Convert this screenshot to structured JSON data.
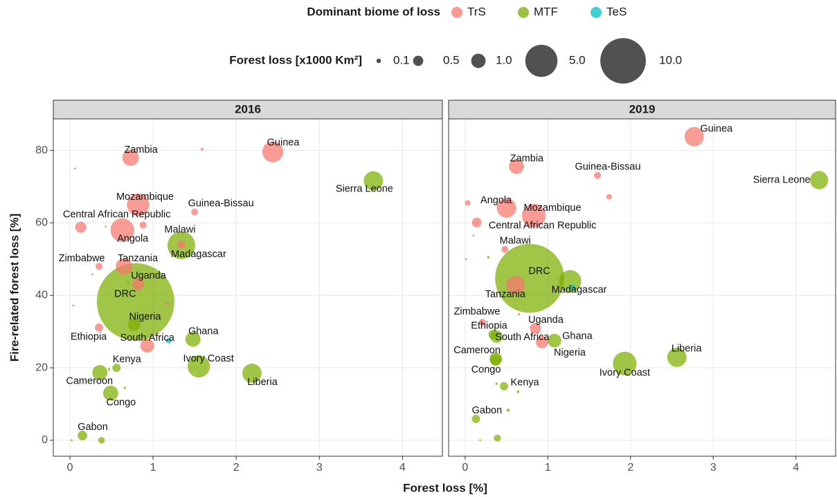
{
  "chart_data": {
    "type": "scatter",
    "x_label": "Forest loss [%]",
    "y_label": "Fire-related forest loss [%]",
    "xlim": [
      -0.2,
      4.48
    ],
    "ylim": [
      -4.4,
      88.7
    ],
    "xticks": [
      0,
      1,
      2,
      3,
      4
    ],
    "yticks": [
      0,
      20,
      40,
      60,
      80
    ],
    "grid": true,
    "color_legend": {
      "title": "Dominant biome of loss",
      "items": [
        {
          "name": "TrS",
          "color": "#F8766D"
        },
        {
          "name": "MTF",
          "color": "#7CAE00"
        },
        {
          "name": "TeS",
          "color": "#00BFC4"
        }
      ]
    },
    "size_legend": {
      "title": "Forest loss [x1000 Km²]",
      "sizes": [
        {
          "value": 0.1,
          "label": "0.1"
        },
        {
          "value": 0.5,
          "label": "0.5"
        },
        {
          "value": 1,
          "label": "1.0"
        },
        {
          "value": 5,
          "label": "5.0"
        },
        {
          "value": 10,
          "label": "10.0"
        }
      ]
    },
    "facets": [
      {
        "title": "2016",
        "points": [
          {
            "label": "Zambia",
            "x": 0.73,
            "y": 78,
            "size": 1.33,
            "biome": "TrS"
          },
          {
            "label": null,
            "x": 1.59,
            "y": 80.3,
            "size": 0.04,
            "biome": "TrS"
          },
          {
            "label": null,
            "x": 0.06,
            "y": 75,
            "size": 0.02,
            "biome": "TrS"
          },
          {
            "label": "Guinea",
            "x": 2.44,
            "y": 79.6,
            "size": 2.1,
            "biome": "TrS"
          },
          {
            "label": "Sierra Leone",
            "x": 3.65,
            "y": 71.6,
            "size": 1.8,
            "biome": "MTF"
          },
          {
            "label": "Mozambique",
            "x": 0.82,
            "y": 65,
            "size": 2.4,
            "biome": "TrS"
          },
          {
            "label": "Guinea-Bissau",
            "x": 1.5,
            "y": 63,
            "size": 0.23,
            "biome": "TrS"
          },
          {
            "label": "Central African Republic",
            "x": 0.13,
            "y": 58.8,
            "size": 0.6,
            "biome": "TrS"
          },
          {
            "label": "Angola",
            "x": 0.63,
            "y": 58,
            "size": 2.7,
            "biome": "TrS"
          },
          {
            "label": null,
            "x": 0.88,
            "y": 59.4,
            "size": 0.23,
            "biome": "TrS"
          },
          {
            "label": null,
            "x": 0.43,
            "y": 59,
            "size": 0.02,
            "biome": "TrS"
          },
          {
            "label": "Madagascar",
            "x": 1.34,
            "y": 53.8,
            "size": 3.7,
            "biome": "MTF"
          },
          {
            "label": "Malawi",
            "x": 1.34,
            "y": 54,
            "size": 0.3,
            "biome": "TrS"
          },
          {
            "label": "Zimbabwe",
            "x": 0.35,
            "y": 48,
            "size": 0.23,
            "biome": "TrS"
          },
          {
            "label": "Tanzania",
            "x": 0.65,
            "y": 48,
            "size": 1.3,
            "biome": "TrS"
          },
          {
            "label": null,
            "x": 0.27,
            "y": 45.8,
            "size": 0.02,
            "biome": "TrS"
          },
          {
            "label": "Uganda",
            "x": 0.82,
            "y": 43.1,
            "size": 0.75,
            "biome": "TrS"
          },
          {
            "label": "DRC",
            "x": 0.79,
            "y": 38.2,
            "size": 29,
            "biome": "MTF"
          },
          {
            "label": null,
            "x": 0.7,
            "y": 43.5,
            "size": 0.03,
            "biome": "MTF"
          },
          {
            "label": null,
            "x": 1.17,
            "y": 37.8,
            "size": 0.05,
            "biome": "TrS"
          },
          {
            "label": null,
            "x": 0.04,
            "y": 37.2,
            "size": 0.02,
            "biome": "TrS"
          },
          {
            "label": "Nigeria",
            "x": 0.77,
            "y": 31.9,
            "size": 0.75,
            "biome": "MTF"
          },
          {
            "label": "Ethiopia",
            "x": 0.35,
            "y": 31.1,
            "size": 0.33,
            "biome": "TrS"
          },
          {
            "label": "South Africa",
            "x": 0.93,
            "y": 26.1,
            "size": 0.92,
            "biome": "TrS"
          },
          {
            "label": null,
            "x": 1.19,
            "y": 27.5,
            "size": 0.15,
            "biome": "TeS"
          },
          {
            "label": "Ghana",
            "x": 1.48,
            "y": 27.9,
            "size": 1.1,
            "biome": "MTF"
          },
          {
            "label": "Ivory Coast",
            "x": 1.55,
            "y": 20.4,
            "size": 2.4,
            "biome": "MTF"
          },
          {
            "label": "Liberia",
            "x": 2.19,
            "y": 18.5,
            "size": 1.8,
            "biome": "MTF"
          },
          {
            "label": "Kenya",
            "x": 0.56,
            "y": 20,
            "size": 0.33,
            "biome": "MTF"
          },
          {
            "label": null,
            "x": 0.47,
            "y": 19.6,
            "size": 0.03,
            "biome": "MTF"
          },
          {
            "label": "Cameroon",
            "x": 0.36,
            "y": 18.7,
            "size": 1.1,
            "biome": "MTF"
          },
          {
            "label": "Congo",
            "x": 0.49,
            "y": 13,
            "size": 1.1,
            "biome": "MTF"
          },
          {
            "label": null,
            "x": 0.66,
            "y": 14.5,
            "size": 0.03,
            "biome": "MTF"
          },
          {
            "label": "Gabon",
            "x": 0.15,
            "y": 1.3,
            "size": 0.45,
            "biome": "MTF"
          },
          {
            "label": null,
            "x": 0.38,
            "y": 0,
            "size": 0.2,
            "biome": "MTF"
          },
          {
            "label": null,
            "x": 0.02,
            "y": 0,
            "size": 0.02,
            "biome": "MTF"
          }
        ]
      },
      {
        "title": "2019",
        "points": [
          {
            "label": "Guinea",
            "x": 2.77,
            "y": 83.8,
            "size": 1.8,
            "biome": "TrS"
          },
          {
            "label": "Zambia",
            "x": 0.62,
            "y": 75.6,
            "size": 1.1,
            "biome": "TrS"
          },
          {
            "label": "Guinea-Bissau",
            "x": 1.6,
            "y": 73.1,
            "size": 0.23,
            "biome": "TrS"
          },
          {
            "label": "Sierra Leone",
            "x": 4.28,
            "y": 71.8,
            "size": 1.6,
            "biome": "MTF"
          },
          {
            "label": null,
            "x": 1.74,
            "y": 67.2,
            "size": 0.15,
            "biome": "TrS"
          },
          {
            "label": null,
            "x": 0.03,
            "y": 65.5,
            "size": 0.15,
            "biome": "TrS"
          },
          {
            "label": "Angola",
            "x": 0.5,
            "y": 64.1,
            "size": 1.8,
            "biome": "TrS"
          },
          {
            "label": "Mozambique",
            "x": 0.83,
            "y": 62,
            "size": 2.7,
            "biome": "TrS"
          },
          {
            "label": "Central African Republic",
            "x": 0.14,
            "y": 60.1,
            "size": 0.45,
            "biome": "TrS"
          },
          {
            "label": null,
            "x": 0.1,
            "y": 56.5,
            "size": 0.02,
            "biome": "TrS"
          },
          {
            "label": "Malawi",
            "x": 0.48,
            "y": 52.7,
            "size": 0.23,
            "biome": "TrS"
          },
          {
            "label": null,
            "x": 0.01,
            "y": 50,
            "size": 0.02,
            "biome": "TrS"
          },
          {
            "label": null,
            "x": 0.28,
            "y": 50.5,
            "size": 0.03,
            "biome": "MTF"
          },
          {
            "label": "DRC",
            "x": 0.78,
            "y": 44.7,
            "size": 23,
            "biome": "MTF"
          },
          {
            "label": "Madagascar",
            "x": 1.27,
            "y": 43.9,
            "size": 2.4,
            "biome": "MTF"
          },
          {
            "label": "Tanzania",
            "x": 0.61,
            "y": 42.9,
            "size": 1.6,
            "biome": "TrS"
          },
          {
            "label": null,
            "x": 1.3,
            "y": 42.2,
            "size": 0.15,
            "biome": "TeS"
          },
          {
            "label": "Zimbabwe",
            "x": 0.21,
            "y": 32.6,
            "size": 0.23,
            "biome": "TrS"
          },
          {
            "label": null,
            "x": 0.65,
            "y": 34.8,
            "size": 0.03,
            "biome": "TrS"
          },
          {
            "label": "Uganda",
            "x": 0.85,
            "y": 30.9,
            "size": 0.6,
            "biome": "TrS"
          },
          {
            "label": "Ethiopia",
            "x": 0.34,
            "y": 29.2,
            "size": 0.45,
            "biome": "MTF"
          },
          {
            "label": "South Africa",
            "x": 0.38,
            "y": 28.6,
            "size": 0.75,
            "biome": "MTF"
          },
          {
            "label": "Nigeria",
            "x": 0.93,
            "y": 27.1,
            "size": 0.75,
            "biome": "TrS"
          },
          {
            "label": "Ghana",
            "x": 1.08,
            "y": 27.5,
            "size": 0.9,
            "biome": "MTF"
          },
          {
            "label": "Cameroon",
            "x": 0.37,
            "y": 22.5,
            "size": 0.75,
            "biome": "MTF"
          },
          {
            "label": "Congo",
            "x": 0.37,
            "y": 22.1,
            "size": 0.6,
            "biome": "MTF"
          },
          {
            "label": "Ivory Coast",
            "x": 1.93,
            "y": 21.2,
            "size": 2.7,
            "biome": "MTF"
          },
          {
            "label": "Liberia",
            "x": 2.56,
            "y": 22.9,
            "size": 1.8,
            "biome": "MTF"
          },
          {
            "label": "Kenya",
            "x": 0.47,
            "y": 14.9,
            "size": 0.33,
            "biome": "MTF"
          },
          {
            "label": null,
            "x": 0.38,
            "y": 15.6,
            "size": 0.03,
            "biome": "MTF"
          },
          {
            "label": null,
            "x": 0.64,
            "y": 13.4,
            "size": 0.04,
            "biome": "MTF"
          },
          {
            "label": "Gabon",
            "x": 0.13,
            "y": 5.9,
            "size": 0.33,
            "biome": "MTF"
          },
          {
            "label": null,
            "x": 0.52,
            "y": 8.3,
            "size": 0.05,
            "biome": "MTF"
          },
          {
            "label": null,
            "x": 0.39,
            "y": 0.6,
            "size": 0.23,
            "biome": "MTF"
          },
          {
            "label": null,
            "x": 0.18,
            "y": 0,
            "size": 0.02,
            "biome": "MTF"
          }
        ]
      }
    ]
  }
}
